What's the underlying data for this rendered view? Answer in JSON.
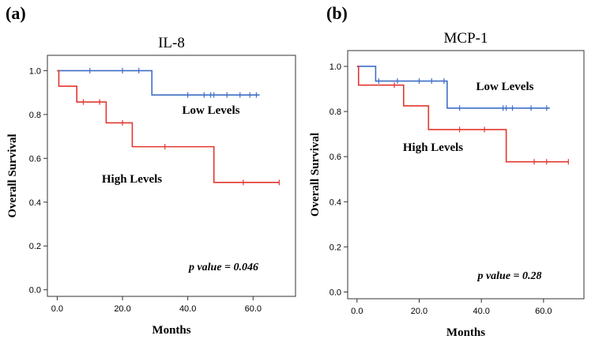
{
  "chart_data": [
    {
      "type": "line",
      "subtype": "kaplan-meier",
      "panel_label": "(a)",
      "title": "IL-8",
      "xlabel": "Months",
      "ylabel": "Overall Survival",
      "xlim": [
        -3,
        73
      ],
      "ylim": [
        -0.03,
        1.07
      ],
      "x_ticks": [
        0,
        20,
        40,
        60
      ],
      "x_tick_labels": [
        "0.0",
        "20.0",
        "40.0",
        "60.0"
      ],
      "y_ticks": [
        0,
        0.2,
        0.4,
        0.6,
        0.8,
        1.0
      ],
      "y_tick_labels": [
        "0.0",
        "0.2",
        "0.4",
        "0.6",
        "0.8",
        "1.0"
      ],
      "p_value_text": "p value = 0.046",
      "series": [
        {
          "name": "Low Levels",
          "label": "Low Levels",
          "color": "#3f6fc6",
          "steps": [
            [
              0,
              1.0
            ],
            [
              29,
              0.889
            ],
            [
              62,
              0.889
            ]
          ],
          "censors": [
            [
              10,
              1.0
            ],
            [
              20,
              1.0
            ],
            [
              25,
              1.0
            ],
            [
              40,
              0.889
            ],
            [
              45,
              0.889
            ],
            [
              47,
              0.889
            ],
            [
              48,
              0.889
            ],
            [
              52,
              0.889
            ],
            [
              56,
              0.889
            ],
            [
              59,
              0.889
            ],
            [
              61,
              0.889
            ]
          ]
        },
        {
          "name": "High Levels",
          "label": "High Levels",
          "color": "#e2372f",
          "steps": [
            [
              0,
              1.0
            ],
            [
              0.5,
              0.929
            ],
            [
              6,
              0.857
            ],
            [
              15,
              0.762
            ],
            [
              23,
              0.653
            ],
            [
              48,
              0.49
            ],
            [
              68,
              0.49
            ]
          ],
          "censors": [
            [
              8,
              0.857
            ],
            [
              13,
              0.857
            ],
            [
              20,
              0.762
            ],
            [
              33,
              0.653
            ],
            [
              57,
              0.49
            ],
            [
              68,
              0.49
            ]
          ]
        }
      ]
    },
    {
      "type": "line",
      "subtype": "kaplan-meier",
      "panel_label": "(b)",
      "title": "MCP-1",
      "xlabel": "Months",
      "ylabel": "Overall Survival",
      "xlim": [
        -3,
        73
      ],
      "ylim": [
        -0.03,
        1.07
      ],
      "x_ticks": [
        0,
        20,
        40,
        60
      ],
      "x_tick_labels": [
        "0.0",
        "20.0",
        "40.0",
        "60.0"
      ],
      "y_ticks": [
        0,
        0.2,
        0.4,
        0.6,
        0.8,
        1.0
      ],
      "y_tick_labels": [
        "0.0",
        "0.2",
        "0.4",
        "0.6",
        "0.8",
        "1.0"
      ],
      "p_value_text": "p value = 0.28",
      "series": [
        {
          "name": "Low Levels",
          "label": "Low Levels",
          "color": "#3f6fc6",
          "steps": [
            [
              0,
              1.0
            ],
            [
              6,
              0.935
            ],
            [
              29,
              0.815
            ],
            [
              62,
              0.815
            ]
          ],
          "censors": [
            [
              7,
              0.935
            ],
            [
              13,
              0.935
            ],
            [
              20,
              0.935
            ],
            [
              24,
              0.935
            ],
            [
              28,
              0.935
            ],
            [
              33,
              0.815
            ],
            [
              47,
              0.815
            ],
            [
              48,
              0.815
            ],
            [
              50,
              0.815
            ],
            [
              56,
              0.815
            ],
            [
              61,
              0.815
            ]
          ]
        },
        {
          "name": "High Levels",
          "label": "High Levels",
          "color": "#e2372f",
          "steps": [
            [
              0,
              1.0
            ],
            [
              0.5,
              0.917
            ],
            [
              15,
              0.825
            ],
            [
              23,
              0.72
            ],
            [
              48,
              0.577
            ],
            [
              68,
              0.577
            ]
          ],
          "censors": [
            [
              12,
              0.917
            ],
            [
              33,
              0.72
            ],
            [
              41,
              0.72
            ],
            [
              57,
              0.577
            ],
            [
              61,
              0.577
            ],
            [
              68,
              0.577
            ]
          ]
        }
      ]
    }
  ]
}
